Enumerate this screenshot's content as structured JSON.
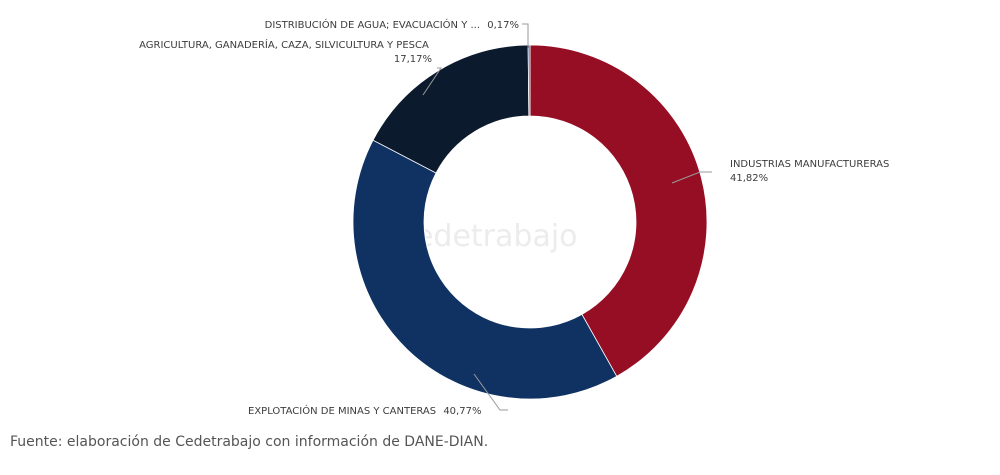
{
  "chart_data": {
    "type": "pie",
    "donut": true,
    "watermark": "cedetrabajo",
    "slices": [
      {
        "name": "INDUSTRIAS MANUFACTURERAS",
        "value": 41.82,
        "value_label": "41,82%",
        "color": "#960e24"
      },
      {
        "name": "EXPLOTACIÓN DE MINAS Y CANTERAS",
        "value": 40.77,
        "value_label": "40,77%",
        "color": "#0f3263"
      },
      {
        "name": "AGRICULTURA, GANADERÍA, CAZA, SILVICULTURA Y PESCA",
        "value": 17.17,
        "value_label": "17,17%",
        "color": "#0c1a2d"
      },
      {
        "name": "DISTRIBUCIÓN DE AGUA; EVACUACIÓN Y ...",
        "value": 0.17,
        "value_label": "0,17%",
        "color": "#3b5f9a"
      }
    ]
  },
  "source": "Fuente: elaboración de Cedetrabajo con información de DANE-DIAN."
}
